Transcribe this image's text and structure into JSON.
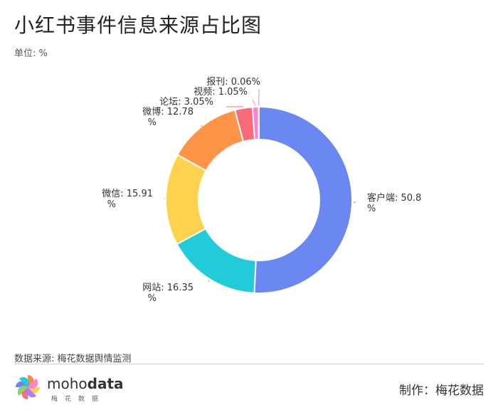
{
  "header": {
    "title": "小红书事件信息来源占比图",
    "unit": "单位: %"
  },
  "chart_data": {
    "type": "pie",
    "title": "小红书事件信息来源占比图",
    "unit": "%",
    "donut": true,
    "categories": [
      "客户端",
      "网站",
      "微信",
      "微博",
      "论坛",
      "视频",
      "报刊"
    ],
    "values": [
      50.8,
      16.35,
      15.91,
      12.78,
      3.05,
      1.05,
      0.06
    ],
    "label_lines": [
      [
        "客户端: 50.8",
        "%"
      ],
      [
        "网站: 16.35",
        "%"
      ],
      [
        "微信: 15.91",
        "%"
      ],
      [
        "微博: 12.78",
        "%"
      ],
      [
        "论坛: 3.05%"
      ],
      [
        "视频: 1.05%"
      ],
      [
        "报刊: 0.06%"
      ]
    ],
    "colors": [
      "#6b87f1",
      "#22cbd8",
      "#ffd24d",
      "#ff9448",
      "#f86b79",
      "#ff7fd3",
      "#c38cf4"
    ]
  },
  "footer": {
    "source": "数据来源: 梅花数据舆情监测",
    "logo_text_light": "moho",
    "logo_text_bold": "data",
    "logo_sub": "梅花数据",
    "maker": "制作：梅花数据"
  }
}
